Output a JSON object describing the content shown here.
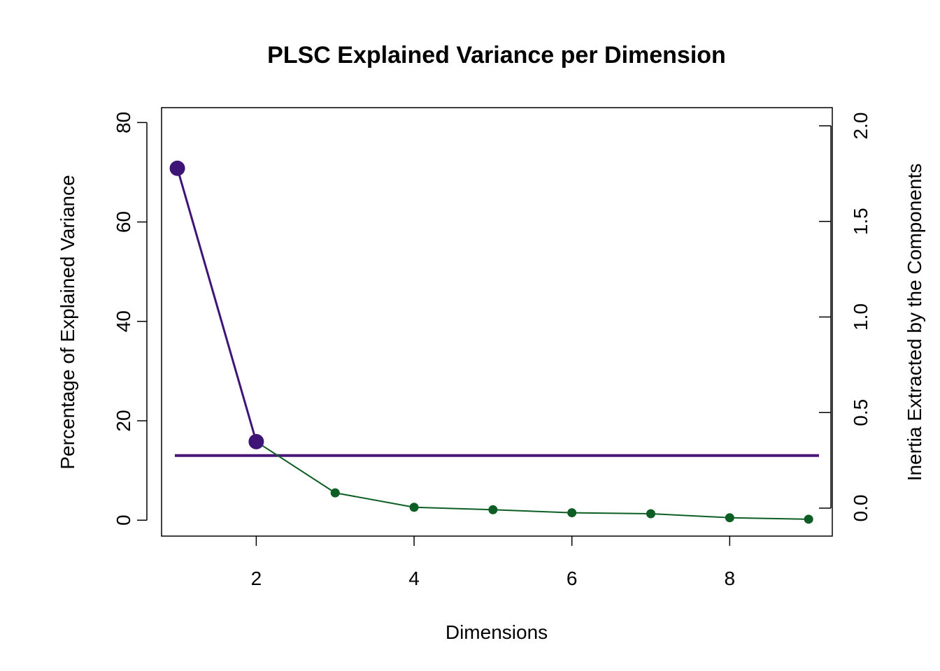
{
  "chart_data": {
    "type": "line",
    "title": "PLSC Explained Variance per Dimension",
    "xlabel": "Dimensions",
    "ylabel": "Percentage of Explained Variance",
    "y2label": "Inertia Extracted by the Components",
    "x": [
      1,
      2,
      3,
      4,
      5,
      6,
      7,
      8,
      9
    ],
    "xlim": [
      0.8,
      9.3
    ],
    "xticks": [
      "2",
      "4",
      "6",
      "8"
    ],
    "ylim": [
      -3.2,
      83
    ],
    "yticks": [
      "0",
      "20",
      "40",
      "60",
      "80"
    ],
    "y2lim": [
      0,
      2.0
    ],
    "y2ticks": [
      "0.0",
      "0.5",
      "1.0",
      "1.5",
      "2.0"
    ],
    "series": [
      {
        "values": [
          70.8,
          15.8,
          5.5,
          2.6,
          2.1,
          1.5,
          1.3,
          0.5,
          0.2
        ],
        "colors": {
          "significant": "#3f1477",
          "nonsignificant": "#0d5e24"
        },
        "significant_count": 2
      }
    ],
    "annotations": [
      {
        "type": "hline",
        "y": 13,
        "color": "#4a1778"
      }
    ],
    "grid": false,
    "legend": "none"
  }
}
